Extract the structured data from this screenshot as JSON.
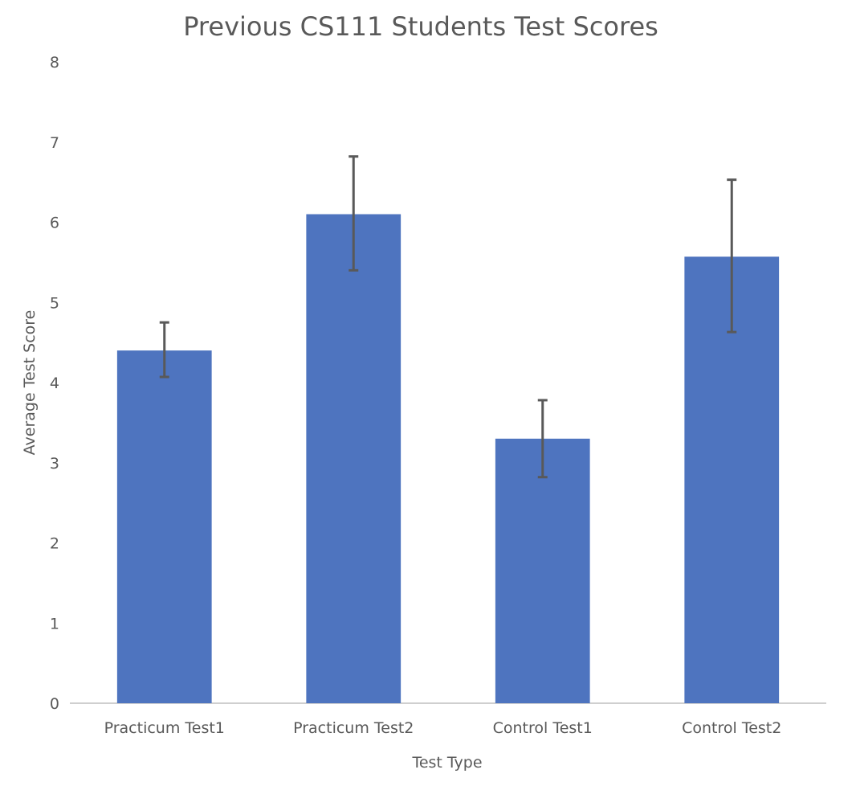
{
  "chart_data": {
    "type": "bar",
    "title": "Previous CS111 Students Test Scores",
    "xlabel": "Test Type",
    "ylabel": "Average Test Score",
    "categories": [
      "Practicum Test1",
      "Practicum Test2",
      "Control Test1",
      "Control Test2"
    ],
    "values": [
      4.4,
      6.1,
      3.3,
      5.57
    ],
    "error_bars": {
      "upper": [
        4.75,
        6.82,
        3.78,
        6.53
      ],
      "lower": [
        4.07,
        5.4,
        2.82,
        4.63
      ]
    },
    "ylim": [
      0,
      8
    ],
    "yticks": [
      "0",
      "1",
      "2",
      "3",
      "4",
      "5",
      "6",
      "7",
      "8"
    ],
    "grid": false,
    "legend": "none",
    "colors": {
      "bar": "#4e74bf",
      "error_bar": "#595959",
      "axis": "#bfbfbf",
      "text": "#595959"
    }
  }
}
